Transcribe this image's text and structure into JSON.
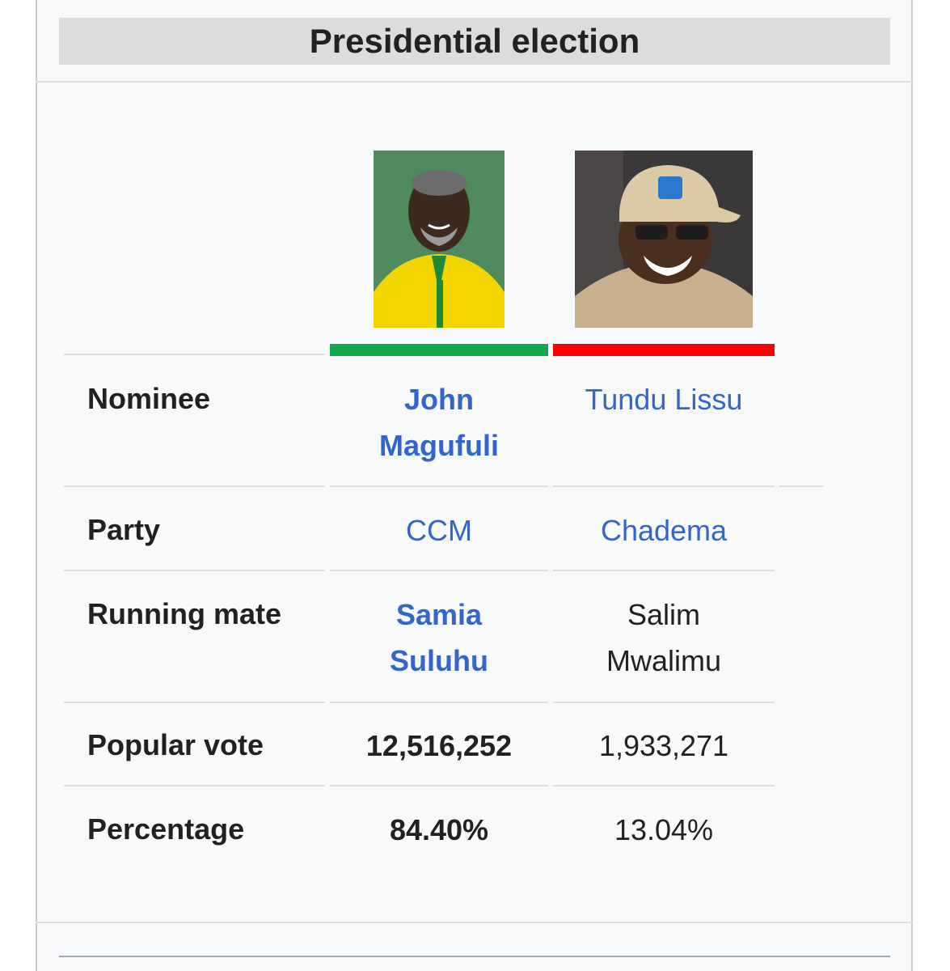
{
  "title": "Presidential election",
  "candidates": [
    {
      "name": "John Magufuli",
      "party": "CCM",
      "running_mate": "Samia Suluhu",
      "popular_vote": "12,516,252",
      "percentage": "84.40%",
      "color": "#10a84a",
      "photo_icon": "portrait-photo"
    },
    {
      "name": "Tundu Lissu",
      "party": "Chadema",
      "running_mate": "Salim Mwalimu",
      "popular_vote": "1,933,271",
      "percentage": "13.04%",
      "color": "#ff0000",
      "photo_icon": "portrait-photo"
    }
  ],
  "labels": {
    "nominee": "Nominee",
    "party": "Party",
    "running_mate": "Running mate",
    "popular_vote": "Popular vote",
    "percentage": "Percentage"
  },
  "link_color": "#3366cc"
}
